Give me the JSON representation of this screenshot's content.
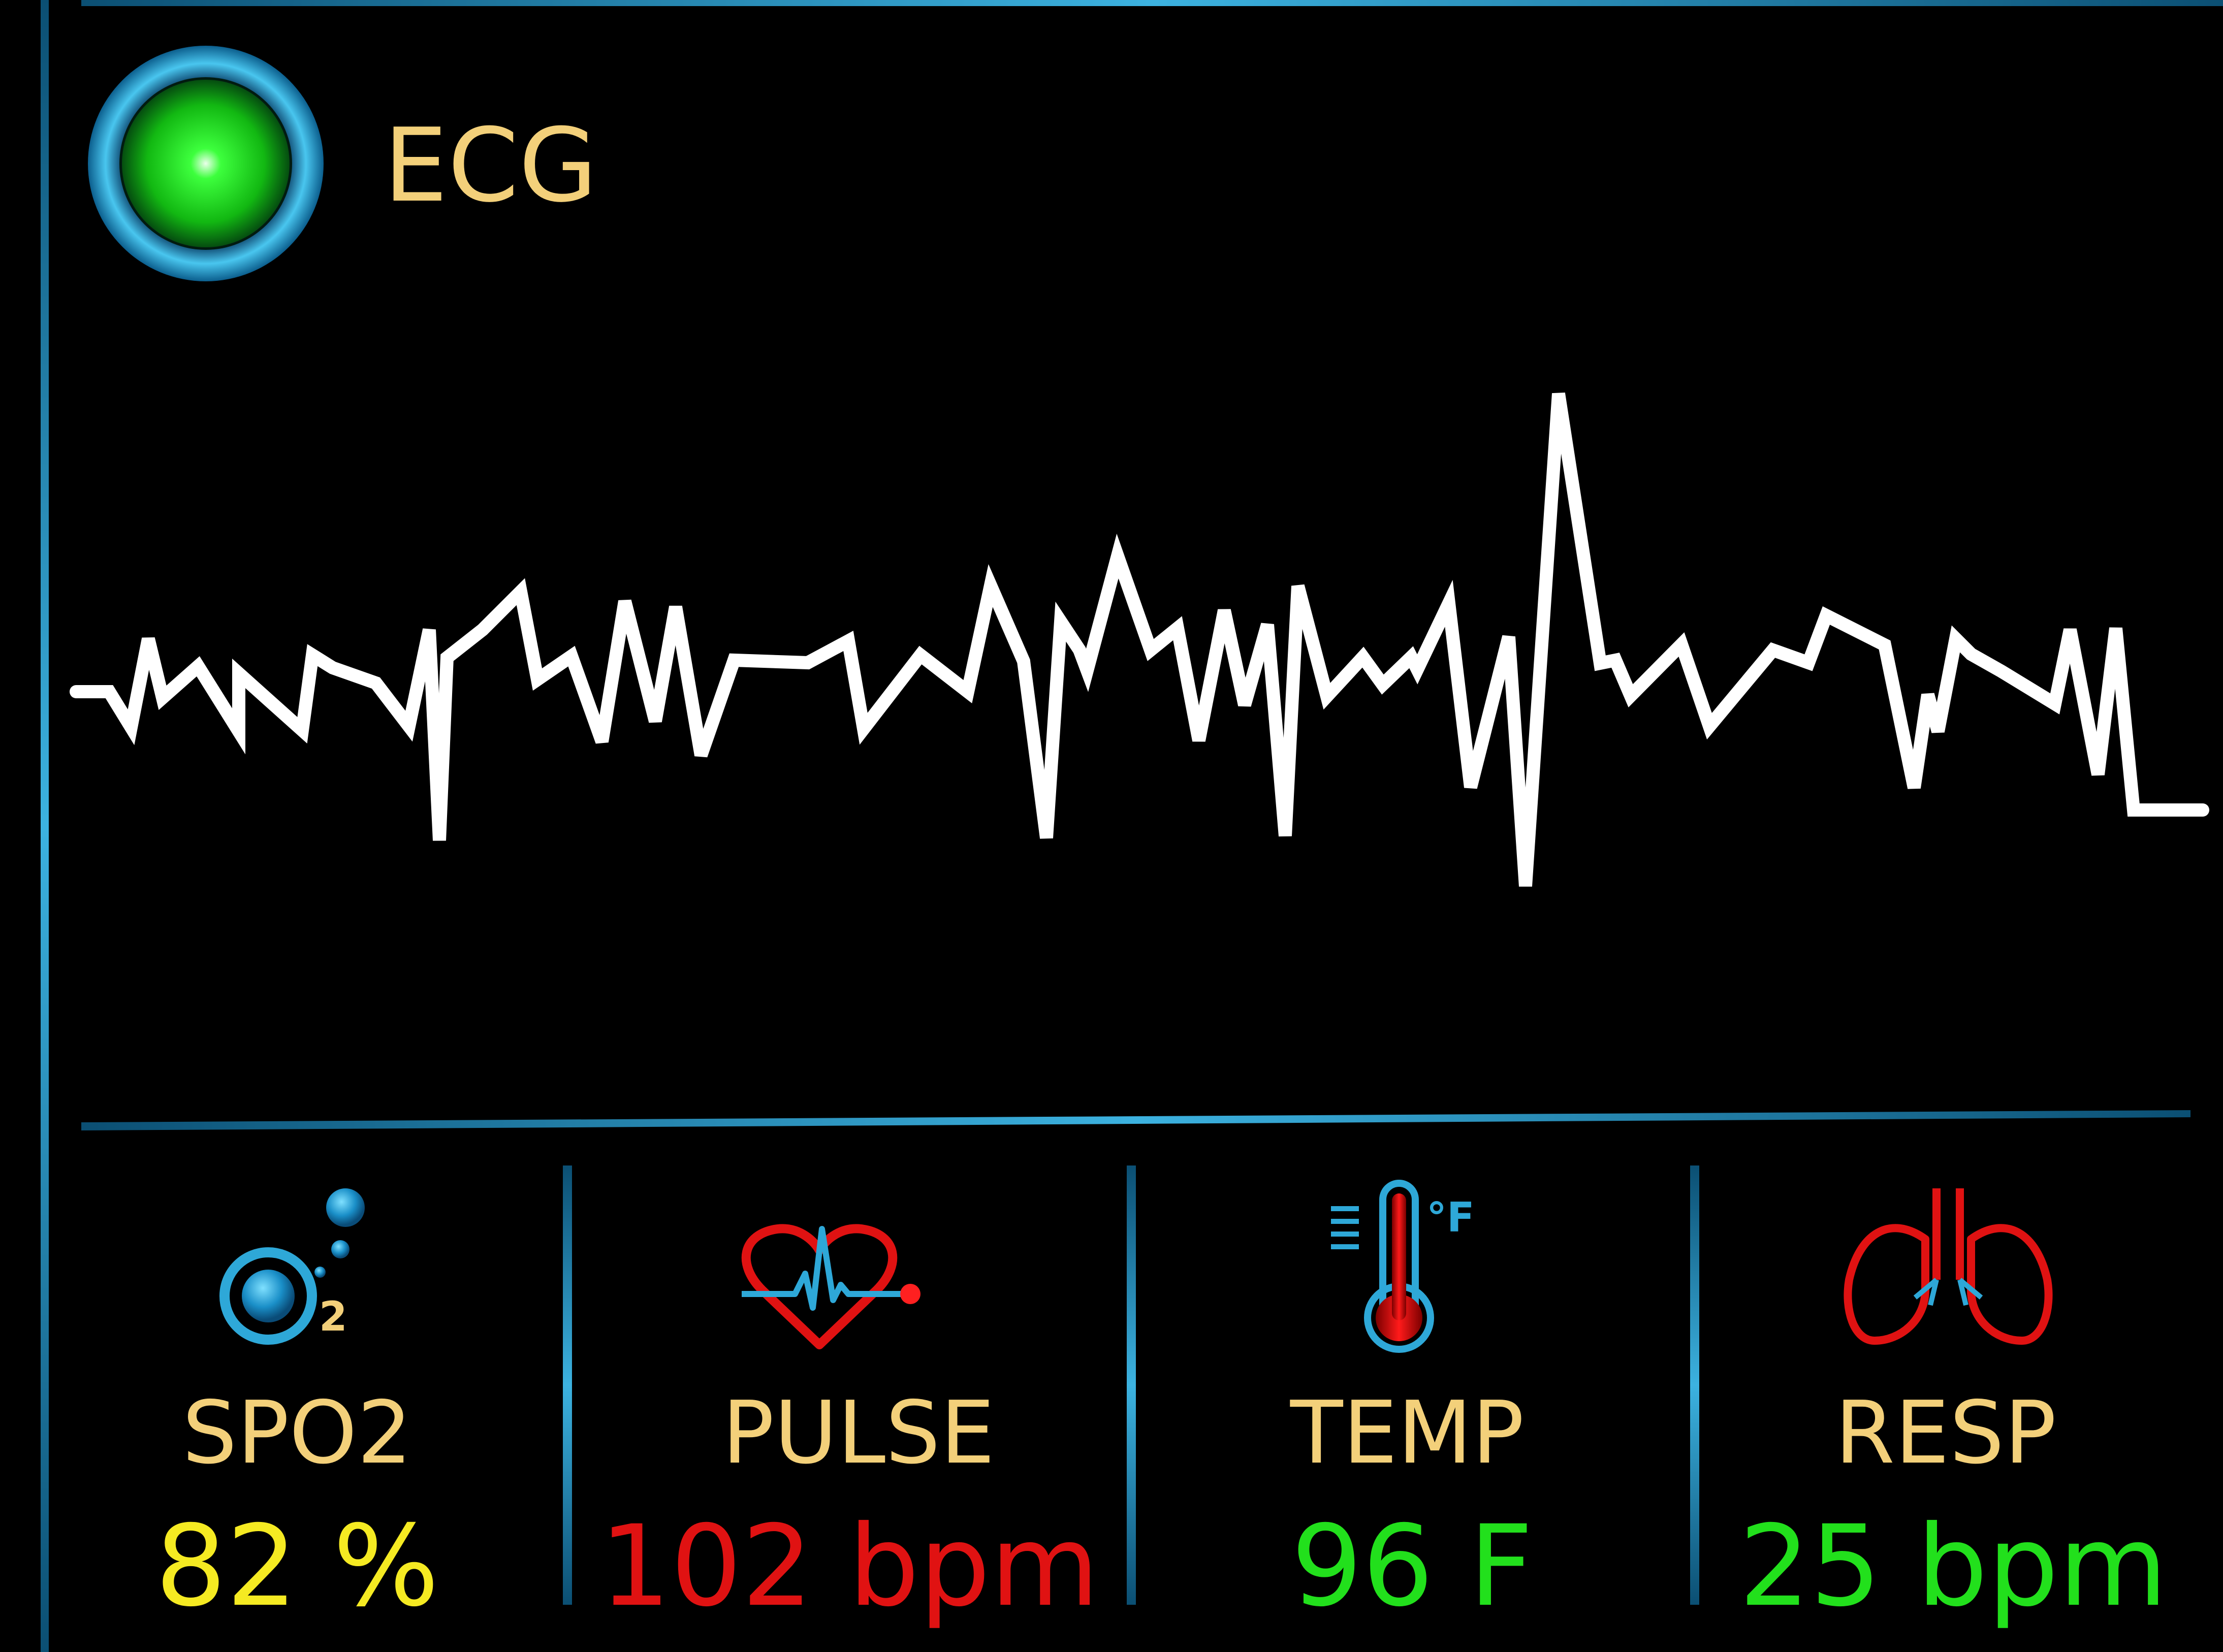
{
  "header": {
    "title": "ECG",
    "status_indicator": "green-led",
    "status_color": "#1fe01f"
  },
  "ecg": {
    "trace_color": "#ffffff"
  },
  "vitals": [
    {
      "label": "SPO2",
      "value": "82 %",
      "icon": "oxygen-icon",
      "value_color": "#f5ea22"
    },
    {
      "label": "PULSE",
      "value": "102 bpm",
      "icon": "heart-pulse-icon",
      "value_color": "#e01212"
    },
    {
      "label": "TEMP",
      "value": "96 F",
      "icon": "thermometer-icon",
      "value_color": "#22e01c",
      "unit_symbol": "°F",
      "icon_sub": "F"
    },
    {
      "label": "RESP",
      "value": "25 bpm",
      "icon": "lungs-icon",
      "value_color": "#22e01c"
    }
  ],
  "colors": {
    "label": "#f3d07a",
    "frame": "#1d79a8",
    "accent_blue": "#2ea8d8"
  }
}
